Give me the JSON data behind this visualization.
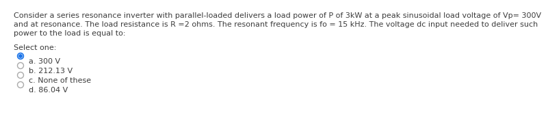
{
  "background_color": "#ffffff",
  "question_lines": [
    "Consider a series resonance inverter with parallel-loaded delivers a load power of P of 3kW at a peak sinusoidal load voltage of Vp= 300V",
    "and at resonance. The load resistance is R =2 ohms. The resonant frequency is fo = 15 kHz. The voltage dc input needed to deliver such",
    "power to the load is equal to:"
  ],
  "select_label": "Select one:",
  "options": [
    {
      "label": "a. 300 V",
      "selected": true
    },
    {
      "label": "b. 212.13 V",
      "selected": false
    },
    {
      "label": "c. None of these",
      "selected": false
    },
    {
      "label": "d. 86.04 V",
      "selected": false
    }
  ],
  "text_color": "#3c3c3c",
  "selected_ring_color": "#1a73e8",
  "selected_dot_color": "#1a73e8",
  "unselected_color": "#aaaaaa",
  "font_size_question": 8.0,
  "font_size_select": 8.0,
  "font_size_option": 8.0
}
